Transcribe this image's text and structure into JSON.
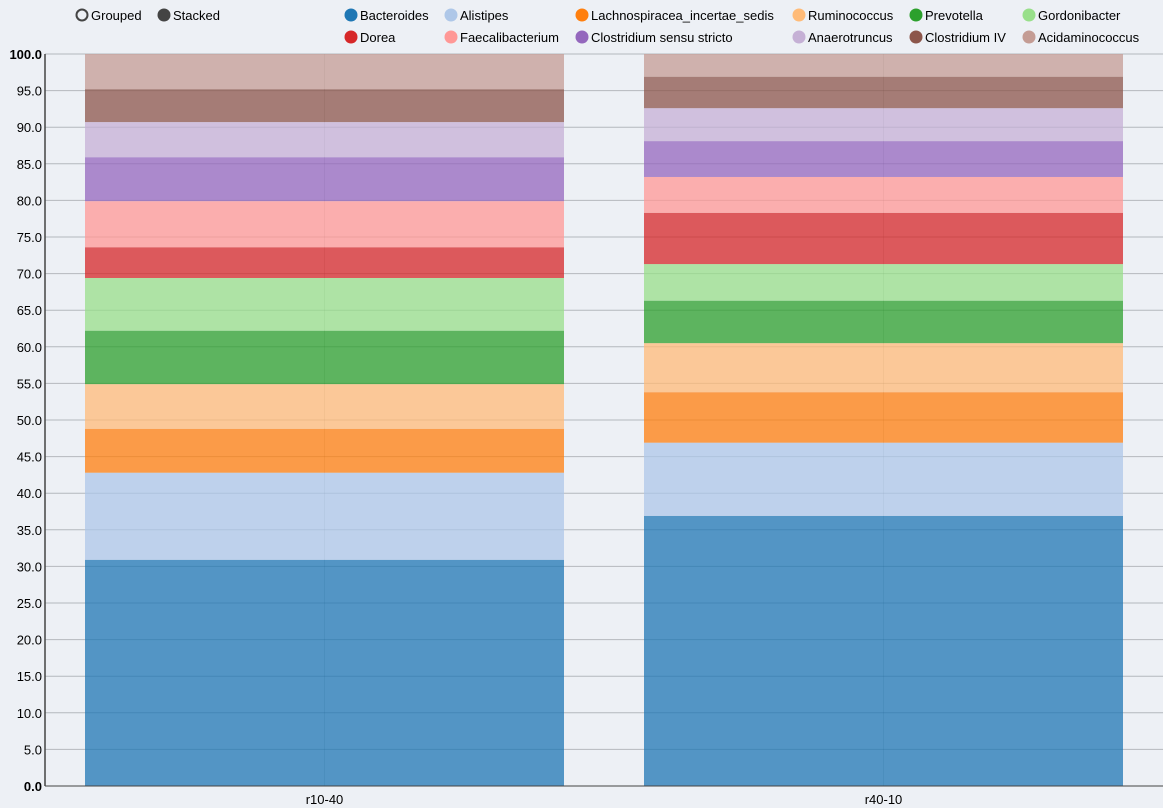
{
  "controls": {
    "grouped_label": "Grouped",
    "stacked_label": "Stacked",
    "selected": "Stacked"
  },
  "chart_data": {
    "type": "bar",
    "stacked": true,
    "categories": [
      "r10-40",
      "r40-10"
    ],
    "ylim": [
      0,
      100
    ],
    "yticks": [
      "0.0",
      "5.0",
      "10.0",
      "15.0",
      "20.0",
      "25.0",
      "30.0",
      "35.0",
      "40.0",
      "45.0",
      "50.0",
      "55.0",
      "60.0",
      "65.0",
      "70.0",
      "75.0",
      "80.0",
      "85.0",
      "90.0",
      "95.0",
      "100.0"
    ],
    "grid": true,
    "legend_position": "top",
    "series": [
      {
        "name": "Bacteroides",
        "color": "#1f77b4",
        "values": [
          30.9,
          36.9
        ]
      },
      {
        "name": "Alistipes",
        "color": "#aec7e8",
        "values": [
          11.9,
          10.0
        ]
      },
      {
        "name": "Lachnospiracea_incertae_sedis",
        "color": "#ff7f0e",
        "values": [
          6.0,
          6.9
        ]
      },
      {
        "name": "Ruminococcus",
        "color": "#ffbb78",
        "values": [
          6.1,
          6.7
        ]
      },
      {
        "name": "Prevotella",
        "color": "#2ca02c",
        "values": [
          7.3,
          5.8
        ]
      },
      {
        "name": "Gordonibacter",
        "color": "#98df8a",
        "values": [
          7.2,
          5.0
        ]
      },
      {
        "name": "Dorea",
        "color": "#d62728",
        "values": [
          4.2,
          7.0
        ]
      },
      {
        "name": "Faecalibacterium",
        "color": "#ff9896",
        "values": [
          6.3,
          4.9
        ]
      },
      {
        "name": "Clostridium sensu stricto",
        "color": "#9467bd",
        "values": [
          6.0,
          4.9
        ]
      },
      {
        "name": "Anaerotruncus",
        "color": "#c5b0d5",
        "values": [
          4.8,
          4.5
        ]
      },
      {
        "name": "Clostridium IV",
        "color": "#8c564b",
        "values": [
          4.5,
          4.3
        ]
      },
      {
        "name": "Acidaminococcus",
        "color": "#c49c94",
        "values": [
          4.8,
          3.1
        ]
      }
    ]
  }
}
